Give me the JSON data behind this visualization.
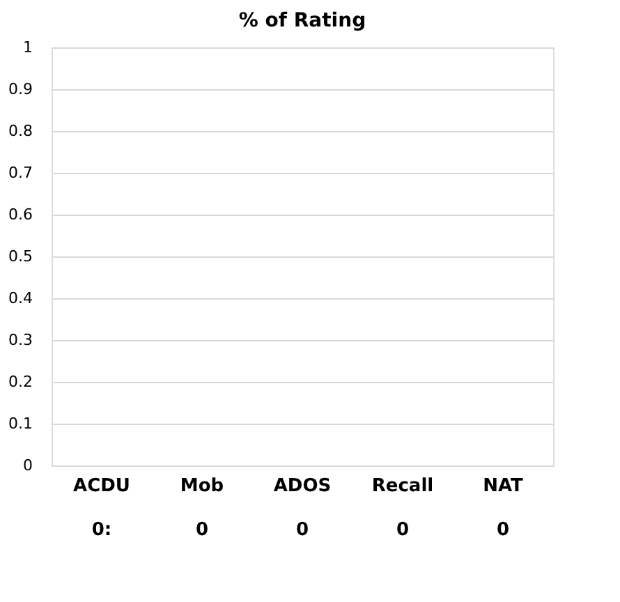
{
  "chart_data": {
    "type": "bar",
    "title": "% of Rating",
    "categories": [
      "ACDU",
      "Mob",
      "ADOS",
      "Recall",
      "NAT"
    ],
    "values": [
      0,
      0,
      0,
      0,
      0
    ],
    "value_labels": [
      "0:",
      "0",
      "0",
      "0",
      "0"
    ],
    "ylim": [
      0,
      1
    ],
    "yticks": [
      0,
      0.1,
      0.2,
      0.3,
      0.4,
      0.5,
      0.6,
      0.7,
      0.8,
      0.9,
      1
    ],
    "grid": "y"
  }
}
